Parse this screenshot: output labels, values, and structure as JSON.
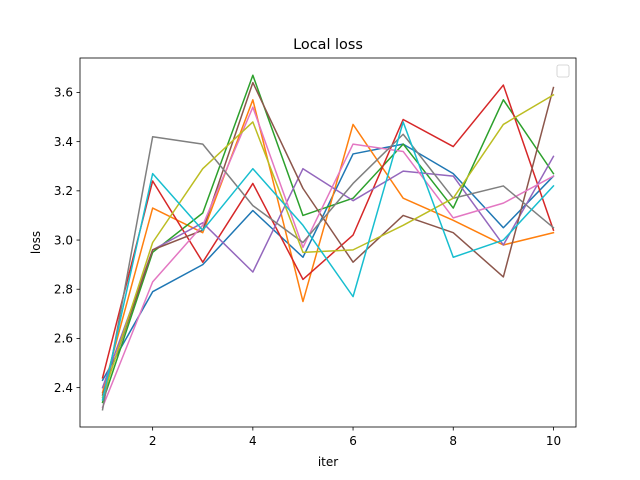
{
  "chart_data": {
    "type": "line",
    "title": "Local loss",
    "xlabel": "iter",
    "ylabel": "loss",
    "x": [
      1,
      2,
      3,
      4,
      5,
      6,
      7,
      8,
      9,
      10
    ],
    "xlim": [
      0.55,
      10.45
    ],
    "ylim": [
      2.24,
      3.74
    ],
    "xticks": [
      2,
      4,
      6,
      8,
      10
    ],
    "yticks": [
      2.4,
      2.6,
      2.8,
      3.0,
      3.2,
      3.4,
      3.6
    ],
    "ytick_labels": [
      "2.4",
      "2.6",
      "2.8",
      "3.0",
      "3.2",
      "3.4",
      "3.6"
    ],
    "grid": false,
    "legend": "upper-right (empty)",
    "series": [
      {
        "color": "#1f77b4",
        "values": [
          2.43,
          2.79,
          2.9,
          3.12,
          2.93,
          3.35,
          3.39,
          3.27,
          3.05,
          3.26
        ]
      },
      {
        "color": "#ff7f0e",
        "values": [
          2.38,
          3.13,
          3.03,
          3.57,
          2.75,
          3.47,
          3.17,
          3.08,
          2.98,
          3.03
        ]
      },
      {
        "color": "#2ca02c",
        "values": [
          2.34,
          2.95,
          3.11,
          3.67,
          3.1,
          3.17,
          3.39,
          3.13,
          3.57,
          3.27
        ]
      },
      {
        "color": "#d62728",
        "values": [
          2.44,
          3.24,
          2.91,
          3.23,
          2.84,
          3.02,
          3.49,
          3.38,
          3.63,
          3.04
        ]
      },
      {
        "color": "#9467bd",
        "values": [
          2.4,
          2.96,
          3.07,
          2.87,
          3.29,
          3.16,
          3.28,
          3.26,
          2.98,
          3.34
        ]
      },
      {
        "color": "#8c564b",
        "values": [
          2.37,
          2.96,
          3.04,
          3.64,
          3.21,
          2.91,
          3.1,
          3.03,
          2.85,
          3.62
        ]
      },
      {
        "color": "#e377c2",
        "values": [
          2.32,
          2.83,
          3.06,
          3.54,
          2.97,
          3.39,
          3.36,
          3.09,
          3.15,
          3.26
        ]
      },
      {
        "color": "#7f7f7f",
        "values": [
          2.31,
          3.42,
          3.39,
          3.14,
          2.99,
          3.23,
          3.43,
          3.17,
          3.22,
          3.05
        ]
      },
      {
        "color": "#bcbd22",
        "values": [
          2.36,
          2.99,
          3.29,
          3.48,
          2.95,
          2.96,
          3.06,
          3.17,
          3.47,
          3.59
        ]
      },
      {
        "color": "#17becf",
        "values": [
          2.35,
          3.27,
          3.04,
          3.29,
          3.06,
          2.77,
          3.48,
          2.93,
          3.0,
          3.22
        ]
      }
    ]
  }
}
